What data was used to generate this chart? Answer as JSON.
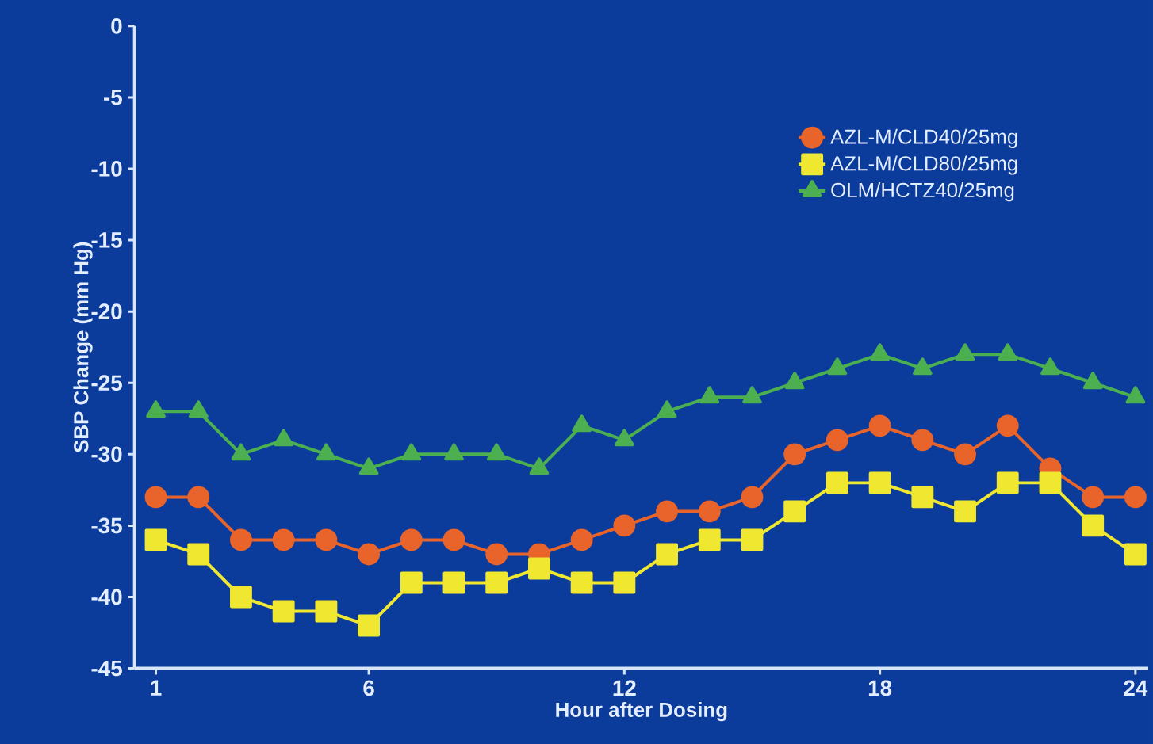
{
  "chart_data": {
    "type": "line",
    "xlabel": "Hour after Dosing",
    "ylabel": "SBP Change (mm Hg)",
    "x": [
      1,
      2,
      3,
      4,
      5,
      6,
      7,
      8,
      9,
      10,
      11,
      12,
      13,
      14,
      15,
      16,
      17,
      18,
      19,
      20,
      21,
      22,
      23,
      24
    ],
    "series": [
      {
        "name": "AZL-M/CLD40/25mg",
        "color": "#e8642a",
        "marker": "circle",
        "values": [
          -33,
          -33,
          -36,
          -36,
          -36,
          -37,
          -36,
          -36,
          -37,
          -37,
          -36,
          -35,
          -34,
          -34,
          -33,
          -30,
          -29,
          -28,
          -29,
          -30,
          -28,
          -31,
          -33,
          -33
        ]
      },
      {
        "name": "AZL-M/CLD80/25mg",
        "color": "#f0e830",
        "marker": "square",
        "values": [
          -36,
          -37,
          -40,
          -41,
          -41,
          -42,
          -39,
          -39,
          -39,
          -38,
          -39,
          -39,
          -37,
          -36,
          -36,
          -34,
          -32,
          -32,
          -33,
          -34,
          -32,
          -32,
          -35,
          -37
        ]
      },
      {
        "name": "OLM/HCTZ40/25mg",
        "color": "#4caf50",
        "marker": "triangle",
        "values": [
          -27,
          -27,
          -30,
          -29,
          -30,
          -31,
          -30,
          -30,
          -30,
          -31,
          -28,
          -29,
          -27,
          -26,
          -26,
          -25,
          -24,
          -23,
          -24,
          -23,
          -23,
          -24,
          -25,
          -26
        ]
      }
    ],
    "xlim": [
      0.5,
      24.3
    ],
    "ylim": [
      -45,
      0
    ],
    "xticks": [
      1,
      6,
      12,
      18,
      24
    ],
    "yticks": [
      0,
      -5,
      -10,
      -15,
      -20,
      -25,
      -30,
      -35,
      -40,
      -45
    ],
    "legend": "top right",
    "line_style": "solid"
  }
}
